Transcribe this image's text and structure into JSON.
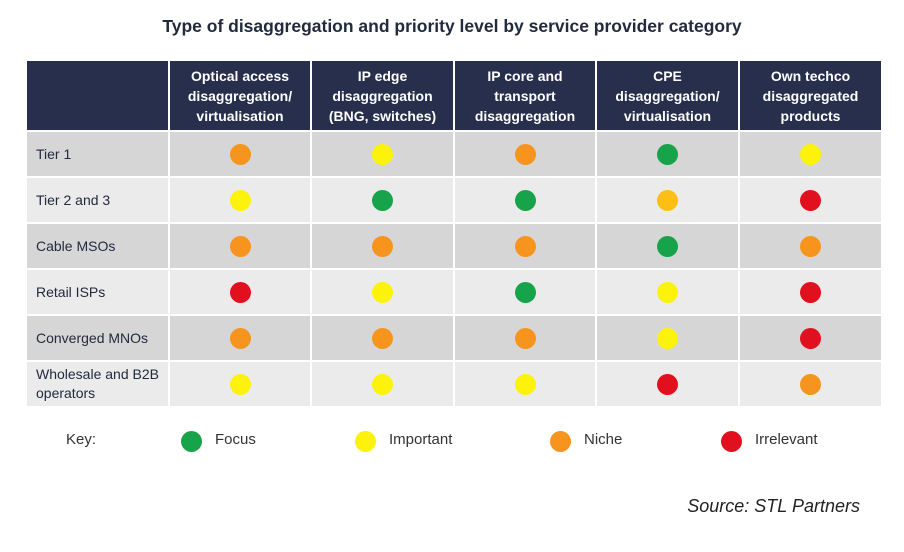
{
  "title": "Type of disaggregation and priority level by service provider category",
  "columns": [
    "Optical access disaggregation/ virtualisation",
    "IP edge disaggregation (BNG, switches)",
    "IP core and transport disaggregation",
    "CPE disaggregation/ virtualisation",
    "Own techco disaggregated products"
  ],
  "colors": {
    "Focus": "#16a34a",
    "Important": "#fcf20a",
    "Niche": "#f7941d",
    "Irrelevant": "#e1101e",
    "Important-amber": "#fdbf14"
  },
  "chart_data": {
    "type": "table",
    "title": "Type of disaggregation and priority level by service provider category",
    "columns": [
      "Optical access disaggregation/ virtualisation",
      "IP edge disaggregation (BNG, switches)",
      "IP core and transport disaggregation",
      "CPE disaggregation/ virtualisation",
      "Own techco disaggregated products"
    ],
    "rows": [
      {
        "label": "Tier 1",
        "values": [
          "Niche",
          "Important",
          "Niche",
          "Focus",
          "Important"
        ]
      },
      {
        "label": "Tier 2 and 3",
        "values": [
          "Important",
          "Focus",
          "Focus",
          "Important-amber",
          "Irrelevant"
        ]
      },
      {
        "label": "Cable MSOs",
        "values": [
          "Niche",
          "Niche",
          "Niche",
          "Focus",
          "Niche"
        ]
      },
      {
        "label": "Retail ISPs",
        "values": [
          "Irrelevant",
          "Important",
          "Focus",
          "Important",
          "Irrelevant"
        ]
      },
      {
        "label": "Converged MNOs",
        "values": [
          "Niche",
          "Niche",
          "Niche",
          "Important",
          "Irrelevant"
        ]
      },
      {
        "label": "Wholesale and B2B operators",
        "values": [
          "Important",
          "Important",
          "Important",
          "Irrelevant",
          "Niche"
        ]
      }
    ]
  },
  "key": {
    "label": "Key:",
    "items": [
      {
        "label": "Focus",
        "color": "#16a34a"
      },
      {
        "label": "Important",
        "color": "#fcf20a"
      },
      {
        "label": "Niche",
        "color": "#f7941d"
      },
      {
        "label": "Irrelevant",
        "color": "#e1101e"
      }
    ]
  },
  "source": "Source: STL Partners"
}
